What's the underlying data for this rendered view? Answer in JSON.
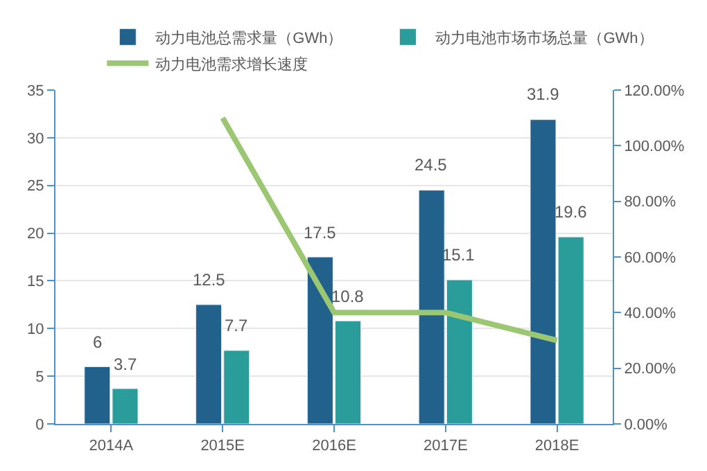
{
  "chart_data": {
    "type": "bar",
    "categories": [
      "2014A",
      "2015E",
      "2016E",
      "2017E",
      "2018E"
    ],
    "series": [
      {
        "name": "动力电池总需求量（GWh）",
        "color": "#21618c",
        "values": [
          6,
          12.5,
          17.5,
          24.5,
          31.9
        ],
        "value_labels": [
          "6",
          "12.5",
          "17.5",
          "24.5",
          "31.9"
        ]
      },
      {
        "name": "动力电池市场市场总量（GWh）",
        "color": "#2a9d9a",
        "values": [
          3.7,
          7.7,
          10.8,
          15.1,
          19.6
        ],
        "value_labels": [
          "3.7",
          "7.7",
          "10.8",
          "15.1",
          "19.6"
        ]
      },
      {
        "name": "动力电池需求增长速度",
        "type": "line",
        "axis": "y2",
        "color": "#9cc772",
        "values": [
          null,
          110,
          40,
          40,
          30
        ]
      }
    ],
    "ylim": [
      0,
      35
    ],
    "yticks": [
      0,
      5,
      10,
      15,
      20,
      25,
      30,
      35
    ],
    "y2lim": [
      0,
      120
    ],
    "y2ticks": [
      {
        "value": 0,
        "label": "0.00%"
      },
      {
        "value": 20,
        "label": "20.00%"
      },
      {
        "value": 40,
        "label": "40.00%"
      },
      {
        "value": 60,
        "label": "60.00%"
      },
      {
        "value": 80,
        "label": "80.00%"
      },
      {
        "value": 100,
        "label": "100.00%"
      },
      {
        "value": 120,
        "label": "120.00%"
      }
    ],
    "grid": "y",
    "legend": "top",
    "marker": "none"
  }
}
